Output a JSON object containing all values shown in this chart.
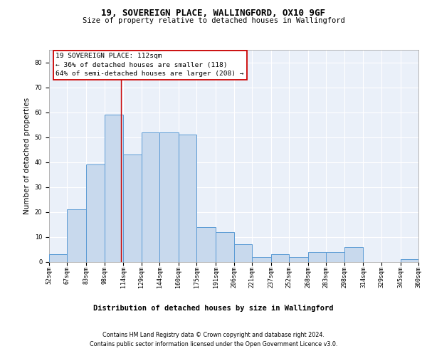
{
  "title": "19, SOVEREIGN PLACE, WALLINGFORD, OX10 9GF",
  "subtitle": "Size of property relative to detached houses in Wallingford",
  "xlabel": "Distribution of detached houses by size in Wallingford",
  "ylabel": "Number of detached properties",
  "annotation_line1": "19 SOVEREIGN PLACE: 112sqm",
  "annotation_line2": "← 36% of detached houses are smaller (118)",
  "annotation_line3": "64% of semi-detached houses are larger (208) →",
  "bins": [
    52,
    67,
    83,
    98,
    114,
    129,
    144,
    160,
    175,
    191,
    206,
    221,
    237,
    252,
    268,
    283,
    298,
    314,
    329,
    345,
    360
  ],
  "counts": [
    3,
    21,
    39,
    59,
    43,
    52,
    52,
    51,
    14,
    12,
    7,
    2,
    3,
    2,
    4,
    4,
    6,
    0,
    0,
    1
  ],
  "bar_color": "#c8d9ed",
  "bar_edge_color": "#5b9bd5",
  "red_line_x": 112,
  "footnote1": "Contains HM Land Registry data © Crown copyright and database right 2024.",
  "footnote2": "Contains public sector information licensed under the Open Government Licence v3.0.",
  "ylim": [
    0,
    85
  ],
  "yticks": [
    0,
    10,
    20,
    30,
    40,
    50,
    60,
    70,
    80
  ],
  "background_color": "#eaf0f9",
  "grid_color": "#ffffff",
  "title_fontsize": 9,
  "subtitle_fontsize": 7.5,
  "ylabel_fontsize": 7.5,
  "xlabel_fontsize": 7.5,
  "tick_fontsize": 6,
  "annotation_fontsize": 6.8,
  "footnote_fontsize": 5.8
}
